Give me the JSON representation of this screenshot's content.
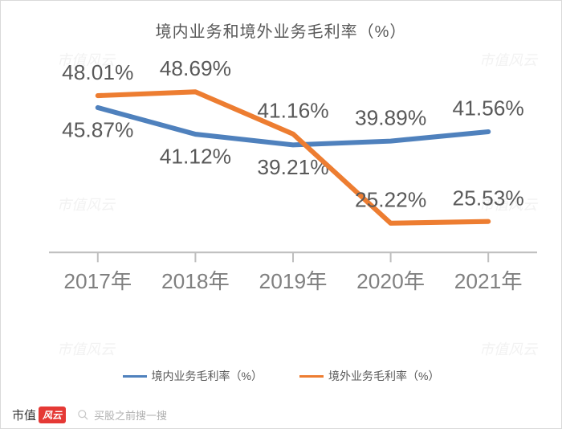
{
  "chart": {
    "type": "line",
    "title": "境内业务和境外业务毛利率（%）",
    "title_fontsize": 20,
    "title_color": "#595959",
    "background_color": "#ffffff",
    "border_color": "#d9d9d9",
    "categories": [
      "2017年",
      "2018年",
      "2019年",
      "2020年",
      "2021年"
    ],
    "x_label_fontsize": 13,
    "x_label_color": "#808080",
    "x_tick_color": "#bfbfbf",
    "ylim": [
      20,
      52
    ],
    "grid_on": false,
    "axis_line_color": "#bfbfbf",
    "series": [
      {
        "name": "境内业务毛利率（%）",
        "color": "#4f81bd",
        "line_width": 3,
        "values": [
          45.87,
          41.12,
          39.21,
          39.89,
          41.56
        ],
        "labels": [
          "45.87%",
          "41.12%",
          "39.21%",
          "39.89%",
          "41.56%"
        ],
        "label_positions": [
          "below",
          "below",
          "below",
          "above",
          "above"
        ]
      },
      {
        "name": "境外业务毛利率（%）",
        "color": "#ed7d31",
        "line_width": 3,
        "values": [
          48.01,
          48.69,
          41.16,
          25.22,
          25.53
        ],
        "labels": [
          "48.01%",
          "48.69%",
          "41.16%",
          "25.22%",
          "25.53%"
        ],
        "label_positions": [
          "above",
          "above",
          "above",
          "above",
          "above"
        ]
      }
    ],
    "data_label_fontsize": 13,
    "data_label_color": "#595959",
    "legend_fontsize": 14,
    "legend_color": "#595959"
  },
  "watermark": {
    "text": "市值风云",
    "color": "#f2f2f2",
    "fontsize": 18
  },
  "footer": {
    "logo_left": "市值",
    "logo_right": "风云",
    "tagline": "买股之前搜一搜"
  }
}
